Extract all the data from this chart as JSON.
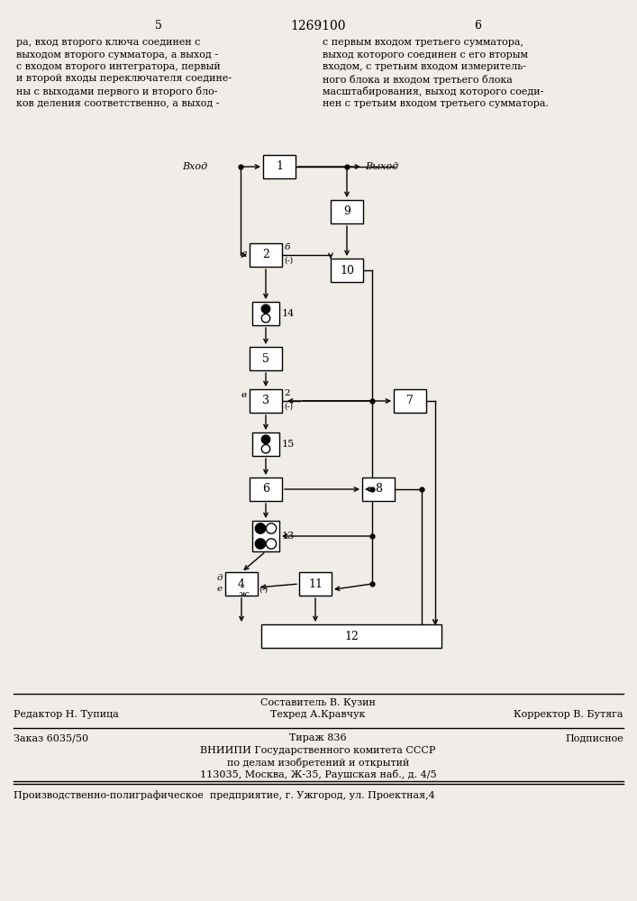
{
  "title": "1269100",
  "page_left": "5",
  "page_right": "6",
  "text_left": "ра, вход второго ключа соединен с\nвыходом второго сумматора, а выход -\nс входом второго интегратора, первый\nи второй входы переключателя соедине-\nны с выходами первого и второго бло-\nков деления соответственно, а выход -",
  "text_right": "с первым входом третьего сумматора,\nвыход которого соединен с его вторым\nвходом, с третьим входом измеритель-\nного блока и входом третьего блока\nмасштабирования, выход которого соеди-\nнен с третьим входом третьего сумматора.",
  "footer_line1": "Составитель В. Кузин",
  "footer_editor": "Редактор Н. Тупица",
  "footer_tech": "Техред А.Кравчук",
  "footer_corrector": "Корректор В. Бутяга",
  "footer_order": "Заказ 6035/50",
  "footer_tirazh": "Тираж 836",
  "footer_podpisnoe": "Подписное",
  "footer_vnipi": "ВНИИПИ Государственного комитета СССР",
  "footer_vnipi2": "по делам изобретений и открытий",
  "footer_address": "113035, Москва, Ж-35, Раушская наб., д. 4/5",
  "footer_prod": "Производственно-полиграфическое  предприятие, г. Ужгород, ул. Проектная,4",
  "bg_color": "#f0ede8"
}
